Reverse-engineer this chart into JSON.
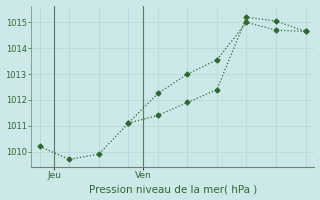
{
  "line1_x": [
    0,
    1,
    2,
    3,
    4,
    5,
    6,
    7,
    8,
    9
  ],
  "line1_y": [
    1010.2,
    1009.7,
    1009.9,
    1011.1,
    1012.25,
    1013.0,
    1013.55,
    1015.0,
    1014.7,
    1014.65
  ],
  "line2_x": [
    3,
    4,
    5,
    6,
    7,
    8,
    9
  ],
  "line2_y": [
    1011.1,
    1011.4,
    1011.9,
    1012.4,
    1015.2,
    1015.05,
    1014.65
  ],
  "color": "#2d6a2d",
  "bg_color": "#cde8e8",
  "grid_major_color": "#b8d4d4",
  "grid_minor_color": "#d4e8e8",
  "ylim_min": 1009.4,
  "ylim_max": 1015.65,
  "yticks": [
    1010,
    1011,
    1012,
    1013,
    1014,
    1015
  ],
  "xlabel": "Pression niveau de la mer( hPa )",
  "jeu_tick": 0.5,
  "ven_tick": 3.5,
  "jeu_line": 0.5,
  "ven_line": 3.5,
  "xlim_min": 0,
  "xlim_max": 9,
  "total_points": 10
}
